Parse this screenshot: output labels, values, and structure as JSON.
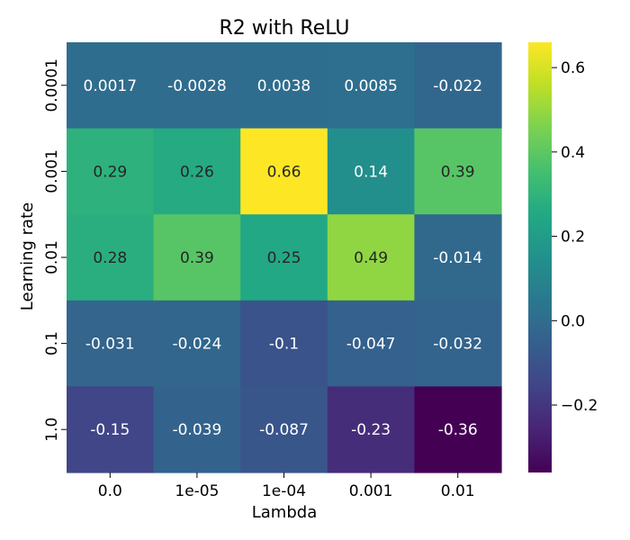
{
  "chart_data": {
    "type": "heatmap",
    "title": "R2 with ReLU",
    "xlabel": "Lambda",
    "ylabel": "Learning rate",
    "x_categories": [
      "0.0",
      "1e-05",
      "1e-04",
      "0.001",
      "0.01"
    ],
    "y_categories": [
      "0.0001",
      "0.001",
      "0.01",
      "0.1",
      "1.0"
    ],
    "values": [
      [
        0.0017,
        -0.0028,
        0.0038,
        0.0085,
        -0.022
      ],
      [
        0.29,
        0.26,
        0.66,
        0.14,
        0.39
      ],
      [
        0.28,
        0.39,
        0.25,
        0.49,
        -0.014
      ],
      [
        -0.031,
        -0.024,
        -0.1,
        -0.047,
        -0.032
      ],
      [
        -0.15,
        -0.039,
        -0.087,
        -0.23,
        -0.36
      ]
    ],
    "cell_labels": [
      [
        "0.0017",
        "-0.0028",
        "0.0038",
        "0.0085",
        "-0.022"
      ],
      [
        "0.29",
        "0.26",
        "0.66",
        "0.14",
        "0.39"
      ],
      [
        "0.28",
        "0.39",
        "0.25",
        "0.49",
        "-0.014"
      ],
      [
        "-0.031",
        "-0.024",
        "-0.1",
        "-0.047",
        "-0.032"
      ],
      [
        "-0.15",
        "-0.039",
        "-0.087",
        "-0.23",
        "-0.36"
      ]
    ],
    "colormap": "viridis",
    "vmin": -0.36,
    "vmax": 0.66,
    "colorbar": {
      "ticks": [
        0.6,
        0.4,
        0.2,
        0.0,
        -0.2
      ],
      "tick_labels": [
        "0.6",
        "0.4",
        "0.2",
        "0.0",
        "−0.2"
      ],
      "placement": "right"
    }
  }
}
